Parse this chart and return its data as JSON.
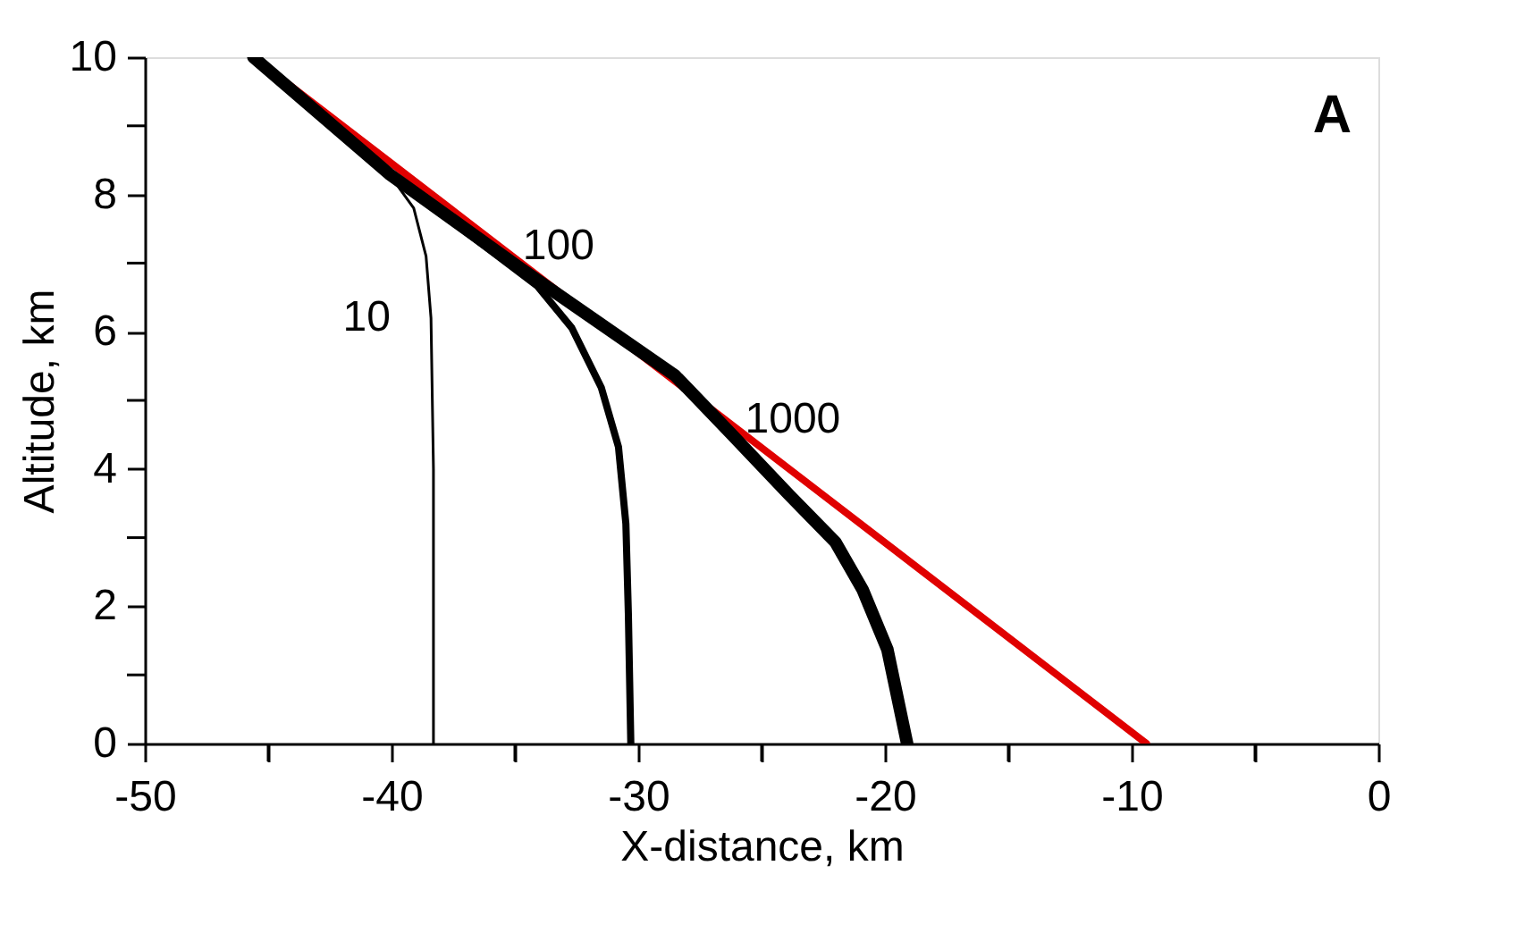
{
  "chart_data": {
    "type": "line",
    "xlabel": "X-distance, km",
    "ylabel": "Altitude, km",
    "xlim": [
      -50,
      0
    ],
    "ylim": [
      0,
      10
    ],
    "xticks": [
      -50,
      {
        "value": -45,
        "label": null
      },
      -40,
      {
        "value": -35,
        "label": null
      },
      -30,
      {
        "value": -25,
        "label": null
      },
      -20,
      {
        "value": -15,
        "label": null
      },
      -10,
      {
        "value": -5,
        "label": null
      },
      0
    ],
    "yticks": [
      0,
      {
        "value": 1,
        "label": null
      },
      2,
      {
        "value": 3,
        "label": null
      },
      4,
      {
        "value": 5,
        "label": null
      },
      6,
      {
        "value": 7,
        "label": null
      },
      8,
      {
        "value": 9,
        "label": null
      },
      10
    ],
    "grid": false,
    "legend": false,
    "marker": "none",
    "line_style": "solid",
    "series": [
      {
        "color": "#e00000",
        "x": [
          -45.6,
          -9.4
        ],
        "values": [
          10,
          0
        ]
      },
      {
        "name": "10",
        "color": "#000000",
        "x": [
          -45.6,
          -40.1,
          -39.1,
          -38.6,
          -38.4,
          -38.3,
          -38.3
        ],
        "values": [
          10,
          8.3,
          7.8,
          7.1,
          6.2,
          4.0,
          0
        ]
      },
      {
        "name": "100",
        "color": "#000000",
        "x": [
          -45.6,
          -40.1,
          -34.1,
          -32.7,
          -31.5,
          -30.8,
          -30.5,
          -30.4,
          -30.3
        ],
        "values": [
          10,
          8.3,
          6.67,
          6.06,
          5.19,
          4.32,
          3.2,
          1.9,
          0
        ]
      },
      {
        "name": "1000",
        "color": "#000000",
        "x": [
          -45.6,
          -40.1,
          -34.8,
          -28.5,
          -26.2,
          -23.9,
          -22.0,
          -20.9,
          -19.9,
          -19.1
        ],
        "values": [
          10,
          8.3,
          6.93,
          5.36,
          4.5,
          3.63,
          2.93,
          2.24,
          1.37,
          0
        ]
      }
    ],
    "annotations": [
      "A"
    ]
  }
}
